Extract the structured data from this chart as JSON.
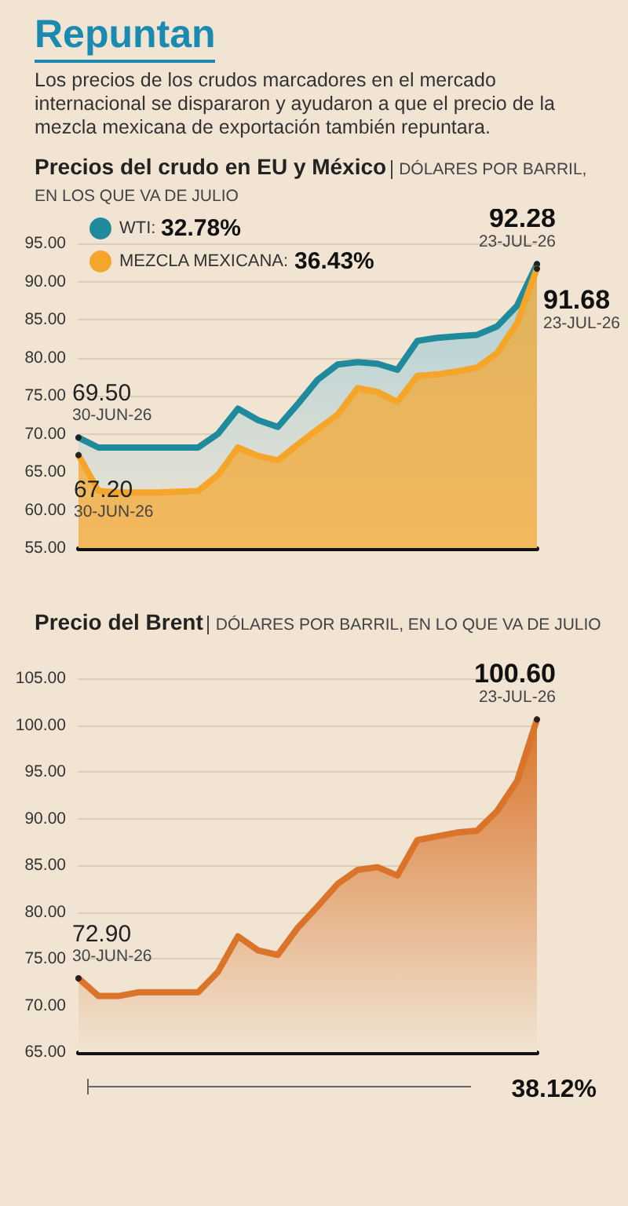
{
  "chart_data": [
    {
      "type": "other",
      "title": "Repuntan",
      "subtitle": "Los precios de los crudos marcadores en el mercado internacional se dispararon y ayudaron a que el precio de la mezcla mexicana de exportación también repuntara."
    },
    {
      "type": "area",
      "title": "Precios del crudo en EU y México",
      "subtitle": "DÓLARES POR BARRIL, EN LOS QUE VA DE JULIO",
      "categories": [
        null,
        null,
        null,
        null,
        null,
        null,
        null,
        null,
        null,
        null,
        null,
        null,
        null,
        null,
        null,
        null,
        null,
        null,
        null,
        null,
        null,
        null,
        null,
        null
      ],
      "series": [
        {
          "name": "WTI:",
          "color": "#1f8a9c",
          "values": [
            69.5,
            68.2,
            68.2,
            68.2,
            68.2,
            68.2,
            68.2,
            70.0,
            73.3,
            71.8,
            70.9,
            73.9,
            77.1,
            79.1,
            79.4,
            79.2,
            78.4,
            82.2,
            82.6,
            82.8,
            83.0,
            84.1,
            86.8,
            92.28
          ],
          "value_labels": [
            "69.50",
            null,
            null,
            null,
            null,
            null,
            null,
            null,
            null,
            null,
            null,
            null,
            null,
            null,
            null,
            null,
            null,
            null,
            null,
            null,
            null,
            null,
            null,
            "92.28"
          ]
        },
        {
          "name": "MEZCLA MEXICANA:",
          "color": "#f5a52a",
          "values": [
            67.2,
            62.5,
            62.3,
            62.3,
            62.3,
            62.4,
            62.5,
            64.6,
            68.2,
            67.1,
            66.5,
            68.6,
            70.6,
            72.5,
            76.0,
            75.5,
            74.2,
            77.6,
            77.8,
            78.2,
            78.7,
            80.6,
            84.5,
            91.68
          ],
          "value_labels": [
            "67.20",
            null,
            null,
            null,
            null,
            null,
            null,
            null,
            null,
            null,
            null,
            null,
            null,
            null,
            null,
            null,
            null,
            null,
            null,
            null,
            null,
            null,
            null,
            "91.68"
          ]
        }
      ],
      "annotations": [
        "32.78%",
        "36.43%",
        "30-JUN-26",
        "23-JUL-26",
        "30-JUN-26",
        "23-JUL-26"
      ],
      "ylim": [
        55,
        95
      ],
      "yticks": [
        {
          "value": 55,
          "label": "55.00"
        },
        {
          "value": 60,
          "label": "60.00"
        },
        {
          "value": 65,
          "label": "65.00"
        },
        {
          "value": 70,
          "label": "70.00"
        },
        {
          "value": 75,
          "label": "75.00"
        },
        {
          "value": 80,
          "label": "80.00"
        },
        {
          "value": 85,
          "label": "85.00"
        },
        {
          "value": 90,
          "label": "90.00"
        },
        {
          "value": 95,
          "label": "95.00"
        }
      ],
      "grid": "y",
      "legend": "top left",
      "tick_labels": "y"
    },
    {
      "type": "area",
      "title": "Precio del Brent",
      "subtitle": "DÓLARES POR BARRIL, EN LO QUE VA DE JULIO",
      "categories": [
        null,
        null,
        null,
        null,
        null,
        null,
        null,
        null,
        null,
        null,
        null,
        null,
        null,
        null,
        null,
        null,
        null,
        null,
        null,
        null,
        null,
        null,
        null,
        null
      ],
      "series": [
        {
          "color": "#d9742a",
          "values": [
            72.9,
            71.0,
            71.0,
            71.4,
            71.4,
            71.4,
            71.4,
            73.6,
            77.4,
            75.9,
            75.4,
            78.3,
            80.6,
            83.0,
            84.5,
            84.8,
            83.9,
            87.7,
            88.1,
            88.5,
            88.7,
            90.8,
            94.0,
            100.6
          ],
          "value_labels": [
            "72.90",
            null,
            null,
            null,
            null,
            null,
            null,
            null,
            null,
            null,
            null,
            null,
            null,
            null,
            null,
            null,
            null,
            null,
            null,
            null,
            null,
            null,
            null,
            "100.60"
          ]
        }
      ],
      "annotations": [
        "30-JUN-26",
        "23-JUL-26",
        "38.12%"
      ],
      "ylim": [
        65,
        105
      ],
      "yticks": [
        {
          "value": 65,
          "label": "65.00"
        },
        {
          "value": 70,
          "label": "70.00"
        },
        {
          "value": 75,
          "label": "75.00"
        },
        {
          "value": 80,
          "label": "80.00"
        },
        {
          "value": 85,
          "label": "85.00"
        },
        {
          "value": 90,
          "label": "90.00"
        },
        {
          "value": 95,
          "label": "95.00"
        },
        {
          "value": 100,
          "label": "100.00"
        },
        {
          "value": 105,
          "label": "105.00"
        }
      ],
      "grid": "y",
      "tick_labels": "y"
    }
  ]
}
